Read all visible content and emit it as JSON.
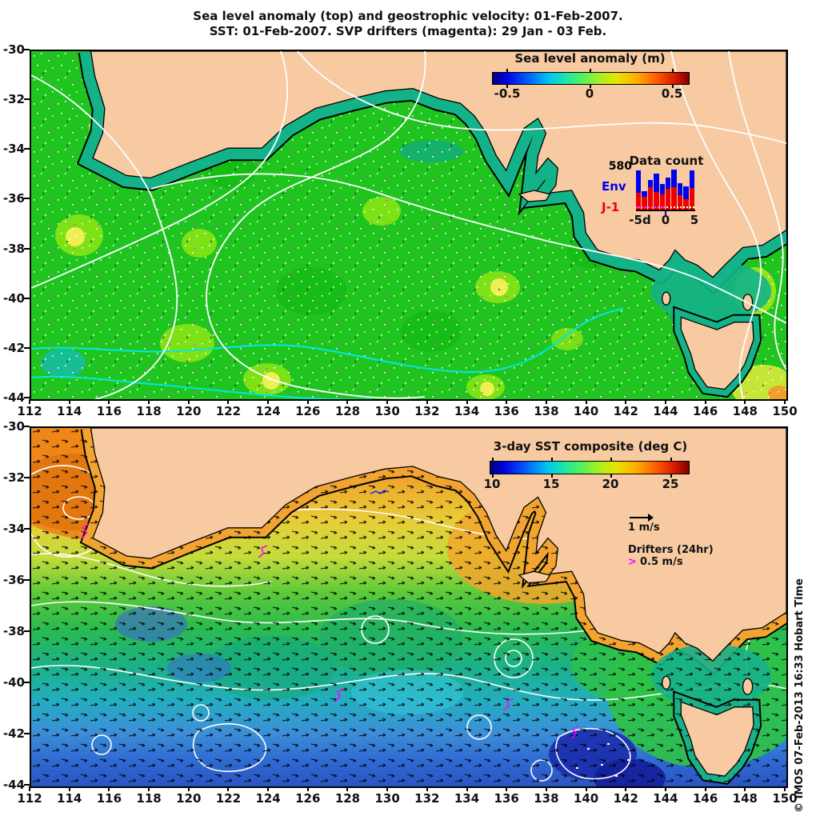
{
  "title": {
    "line1": "Sea level anomaly (top) and geostrophic velocity: 01-Feb-2007.",
    "line2": "SST: 01-Feb-2007. SVP drifters (magenta): 29 Jan - 03 Feb."
  },
  "axes": {
    "lon_labels": [
      "112",
      "114",
      "116",
      "118",
      "120",
      "122",
      "124",
      "126",
      "128",
      "130",
      "132",
      "134",
      "136",
      "138",
      "140",
      "142",
      "144",
      "146",
      "148",
      "150"
    ],
    "lat_labels": [
      "-30",
      "-32",
      "-34",
      "-36",
      "-38",
      "-40",
      "-42",
      "-44"
    ]
  },
  "top_map": {
    "colorbar": {
      "title": "Sea level anomaly (m)",
      "ticks": [
        "-0.5",
        "0",
        "0.5"
      ]
    },
    "data_count": {
      "title": "Data count",
      "max_label": "580",
      "y_max": 580,
      "series": [
        {
          "name": "Env",
          "color": "#0000ee"
        },
        {
          "name": "J-1",
          "color": "#ee0000"
        }
      ],
      "x_ticks": [
        "-5d",
        "0",
        "5"
      ],
      "bars": {
        "env": [
          330,
          75,
          105,
          260,
          150,
          170,
          260,
          170,
          180,
          260
        ],
        "j1": [
          240,
          190,
          320,
          260,
          220,
          300,
          320,
          210,
          155,
          310
        ]
      }
    }
  },
  "bottom_map": {
    "colorbar": {
      "title": "3-day SST composite (deg C)",
      "ticks": [
        "10",
        "15",
        "20",
        "25"
      ]
    },
    "vector_legend": {
      "label": "1 m/s"
    },
    "drifter_legend": {
      "title": "Drifters (24hr)",
      "symbol": ">",
      "speed": "0.5 m/s"
    }
  },
  "copyright": "© IMOS 07-Feb-2013 16:33 Hobart Time",
  "colors": {
    "land": "#f7caa2",
    "ocean_green": "#1fc41f",
    "shelf_teal": "#14b288",
    "contour_white": "#ffffff",
    "contour_cyan": "#00e8e8",
    "drifter_magenta": "#ff00ff",
    "env_blue": "#0000ee",
    "j1_red": "#ee0000",
    "sst_warm_orange": "#ef8c1e",
    "sst_cold_blue": "#2c53c4"
  },
  "chart_data": [
    {
      "type": "heatmap",
      "panel": "top",
      "title": "Sea level anomaly (top) and geostrophic velocity: 01-Feb-2007.",
      "x_ticks": [
        112,
        114,
        116,
        118,
        120,
        122,
        124,
        126,
        128,
        130,
        132,
        134,
        136,
        138,
        140,
        142,
        144,
        146,
        148,
        150
      ],
      "y_ticks": [
        -30,
        -32,
        -34,
        -36,
        -38,
        -40,
        -42,
        -44
      ],
      "x_range": [
        112,
        150
      ],
      "y_range": [
        -44,
        -30
      ],
      "colorbar": {
        "title": "Sea level anomaly (m)",
        "ticks": [
          -0.5,
          0,
          0.5
        ],
        "range": [
          -0.6,
          0.6
        ],
        "colormap": "jet"
      },
      "features": "Sea level anomaly near 0 m (green) over most of the ocean; teal band (~-0.1 m) along the shelf; yellow highs (~+0.2 m) scattered offshore; orange high (~+0.4 m) southeast of Tasmania; white and cyan SLA contours; land masked in tan."
    },
    {
      "type": "heatmap",
      "panel": "bottom",
      "title": "SST: 01-Feb-2007. SVP drifters (magenta): 29 Jan - 03 Feb.",
      "x_ticks": [
        112,
        114,
        116,
        118,
        120,
        122,
        124,
        126,
        128,
        130,
        132,
        134,
        136,
        138,
        140,
        142,
        144,
        146,
        148,
        150
      ],
      "y_ticks": [
        -30,
        -32,
        -34,
        -36,
        -38,
        -40,
        -42,
        -44
      ],
      "x_range": [
        112,
        150
      ],
      "y_range": [
        -44,
        -30
      ],
      "colorbar": {
        "title": "3-day SST composite (deg C)",
        "ticks": [
          10,
          15,
          20,
          25
        ],
        "range": [
          9.8,
          26.5
        ],
        "colormap": "jet"
      },
      "features": "SST ~22-24 C (orange) along the coasts and off Western Australia, ~17-19 C (green) mid-basin, ~11-13 C (blue) in the south with dark ~10 C eddies near 140E 43S; geostrophic velocity arrows (1 m/s scale); white SLA contours; magenta SVP drifter tracks."
    },
    {
      "type": "bar",
      "stacked": true,
      "title": "Data count",
      "categories": [
        "-5",
        "-4",
        "-3",
        "-2",
        "-1",
        "0",
        "1",
        "2",
        "3",
        "4"
      ],
      "series": [
        {
          "name": "Env",
          "values": [
            330,
            75,
            105,
            260,
            150,
            170,
            260,
            170,
            180,
            260
          ]
        },
        {
          "name": "J-1",
          "values": [
            240,
            190,
            320,
            260,
            220,
            300,
            320,
            210,
            155,
            310
          ]
        }
      ],
      "xlabel": "-5d to 5 (days)",
      "ylim": [
        0,
        580
      ],
      "legend_position": "left"
    }
  ]
}
